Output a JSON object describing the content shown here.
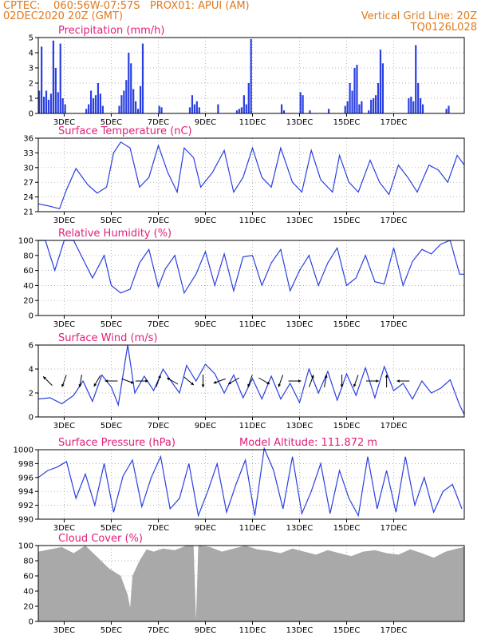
{
  "header": {
    "line1_left": "CPTEC:    060:56W-07:57S   PROX01: APUI (AM)",
    "line2_left": "02DEC2020 20Z (GMT)",
    "line2_right": "Vertical Grid Line: 20Z",
    "line3_right": "TQ0126L028",
    "text_color": "#e07a1f"
  },
  "colors": {
    "title": "#e0207a",
    "line": "#2a3fe0",
    "bar": "#2a3fe0",
    "cloud": "#a9a9a9",
    "grid": "#999999"
  },
  "x_axis": {
    "ticks": [
      "3DEC",
      "5DEC",
      "7DEC",
      "9DEC",
      "11DEC",
      "13DEC",
      "15DEC",
      "17DEC"
    ],
    "start": "02DEC2020 20Z",
    "end": "17DEC2020 00Z"
  },
  "chart_data": [
    {
      "type": "bar",
      "title": "Precipitation (mm/h)",
      "ylim": [
        0,
        5
      ],
      "yticks": [
        "0",
        "1",
        "2",
        "3",
        "4",
        "5"
      ],
      "x": [
        0.05,
        0.15,
        0.25,
        0.35,
        0.45,
        0.55,
        0.65,
        0.75,
        0.85,
        0.95,
        1.05,
        1.15,
        2.05,
        2.15,
        2.25,
        2.35,
        2.45,
        2.55,
        2.65,
        2.75,
        3.45,
        3.55,
        3.65,
        3.75,
        3.85,
        3.95,
        4.05,
        4.15,
        4.25,
        4.35,
        4.45,
        5.15,
        5.25,
        6.45,
        6.55,
        6.65,
        6.75,
        6.85,
        7.65,
        8.45,
        8.55,
        8.65,
        8.75,
        8.85,
        8.95,
        9.05,
        10.35,
        10.45,
        11.15,
        11.25,
        11.55,
        12.35,
        13.05,
        13.15,
        13.25,
        13.35,
        13.45,
        13.55,
        13.65,
        13.75,
        14.05,
        14.15,
        14.25,
        14.35,
        14.45,
        14.55,
        14.65,
        15.75,
        15.85,
        15.95,
        16.05,
        16.15,
        16.25,
        16.35,
        17.35,
        17.45
      ],
      "values": [
        1.5,
        4.4,
        1.1,
        1.5,
        0.9,
        1.3,
        4.8,
        3.0,
        1.4,
        4.6,
        1.0,
        0.6,
        0.3,
        0.6,
        1.5,
        1.0,
        1.2,
        2.0,
        1.3,
        0.5,
        0.5,
        1.2,
        1.5,
        2.2,
        4.0,
        3.3,
        1.6,
        0.8,
        0.3,
        1.8,
        4.6,
        0.5,
        0.4,
        0.4,
        1.2,
        0.6,
        0.8,
        0.4,
        0.6,
        0.2,
        0.3,
        0.4,
        1.2,
        0.6,
        2.0,
        4.9,
        0.6,
        0.2,
        1.4,
        1.2,
        0.2,
        0.3,
        0.5,
        0.8,
        2.0,
        1.5,
        3.0,
        3.2,
        0.6,
        0.8,
        0.2,
        0.9,
        1.0,
        1.2,
        2.0,
        4.2,
        3.3,
        1.0,
        1.1,
        0.8,
        4.5,
        2.0,
        1.0,
        0.6,
        0.3,
        0.5
      ]
    },
    {
      "type": "line",
      "title": "Surface Temperature (nC)",
      "ylim": [
        21,
        36
      ],
      "yticks": [
        "21",
        "24",
        "27",
        "30",
        "33",
        "36"
      ],
      "x": [
        0.0,
        0.4,
        0.9,
        1.2,
        1.6,
        2.1,
        2.5,
        2.9,
        3.2,
        3.5,
        3.9,
        4.3,
        4.7,
        5.1,
        5.5,
        5.9,
        6.2,
        6.6,
        6.9,
        7.4,
        7.9,
        8.3,
        8.7,
        9.1,
        9.5,
        9.9,
        10.3,
        10.8,
        11.2,
        11.6,
        12.0,
        12.5,
        12.8,
        13.2,
        13.6,
        14.1,
        14.5,
        14.9,
        15.3,
        15.7,
        16.1,
        16.6,
        17.0,
        17.4,
        17.8,
        18.1
      ],
      "values": [
        22.6,
        22.2,
        21.6,
        25.5,
        29.8,
        26.5,
        24.8,
        26.0,
        33.0,
        35.2,
        34.0,
        26.0,
        28.0,
        34.5,
        29.0,
        25.0,
        34.0,
        32.0,
        26.0,
        29.0,
        33.5,
        25.0,
        28.0,
        34.0,
        28.0,
        26.0,
        34.0,
        27.0,
        25.0,
        33.5,
        27.5,
        25.0,
        32.5,
        27.0,
        25.0,
        31.5,
        27.0,
        24.5,
        30.5,
        28.0,
        25.0,
        30.5,
        29.5,
        27.0,
        32.5,
        30.5
      ]
    },
    {
      "type": "line",
      "title": "Relative Humidity (%)",
      "ylim": [
        0,
        100
      ],
      "yticks": [
        "0",
        "20",
        "40",
        "60",
        "80",
        "100"
      ],
      "x": [
        0.0,
        0.3,
        0.7,
        1.1,
        1.5,
        1.9,
        2.3,
        2.8,
        3.1,
        3.5,
        3.9,
        4.3,
        4.7,
        5.1,
        5.4,
        5.8,
        6.2,
        6.7,
        7.1,
        7.5,
        7.9,
        8.3,
        8.7,
        9.1,
        9.5,
        9.9,
        10.3,
        10.7,
        11.1,
        11.5,
        11.9,
        12.3,
        12.7,
        13.1,
        13.5,
        13.9,
        14.3,
        14.7,
        15.1,
        15.5,
        15.9,
        16.3,
        16.7,
        17.1,
        17.5,
        17.9,
        18.1
      ],
      "values": [
        100,
        100,
        60,
        100,
        100,
        75,
        50,
        80,
        40,
        30,
        35,
        70,
        88,
        38,
        62,
        80,
        30,
        55,
        85,
        40,
        82,
        33,
        78,
        80,
        40,
        70,
        88,
        33,
        60,
        80,
        40,
        70,
        90,
        40,
        50,
        80,
        45,
        42,
        90,
        40,
        72,
        88,
        82,
        95,
        100,
        55,
        55
      ]
    },
    {
      "type": "line",
      "title": "Surface Wind (m/s)",
      "ylim": [
        0,
        6
      ],
      "yticks": [
        "0",
        "2",
        "4",
        "6"
      ],
      "x": [
        0.0,
        0.5,
        1.0,
        1.5,
        1.9,
        2.3,
        2.7,
        3.1,
        3.4,
        3.8,
        4.1,
        4.5,
        4.9,
        5.3,
        5.6,
        6.0,
        6.3,
        6.7,
        7.1,
        7.5,
        7.9,
        8.3,
        8.7,
        9.1,
        9.5,
        9.9,
        10.3,
        10.7,
        11.1,
        11.5,
        11.9,
        12.3,
        12.7,
        13.1,
        13.5,
        13.9,
        14.3,
        14.7,
        15.1,
        15.5,
        15.9,
        16.3,
        16.7,
        17.1,
        17.5,
        17.9,
        18.1
      ],
      "values": [
        1.5,
        1.6,
        1.1,
        1.8,
        3.0,
        1.3,
        3.5,
        2.5,
        1.0,
        6.0,
        2.0,
        3.4,
        2.2,
        4.0,
        3.1,
        2.0,
        4.3,
        3.0,
        4.4,
        3.6,
        2.0,
        3.5,
        1.6,
        3.2,
        1.5,
        3.4,
        1.5,
        2.8,
        1.2,
        4.0,
        2.0,
        3.8,
        1.4,
        3.6,
        1.8,
        4.1,
        1.6,
        4.2,
        2.2,
        2.8,
        1.5,
        3.0,
        2.0,
        2.4,
        3.1,
        1.0,
        0.2
      ],
      "vectors_count": 24,
      "vector_hours": [
        0.4,
        1.1,
        1.8,
        2.5,
        3.1,
        3.8,
        4.4,
        5.1,
        5.7,
        6.4,
        7.0,
        7.7,
        8.3,
        9.0,
        9.6,
        10.3,
        10.9,
        11.6,
        12.2,
        12.9,
        13.5,
        14.2,
        14.8,
        15.5
      ],
      "vector_directions_deg": [
        315,
        200,
        190,
        210,
        270,
        110,
        90,
        20,
        300,
        130,
        180,
        250,
        240,
        200,
        120,
        200,
        90,
        20,
        10,
        180,
        200,
        90,
        0,
        270
      ]
    },
    {
      "type": "line",
      "title": "Surface Pressure (hPa)",
      "annotation": "Model Altitude: 111.872  m",
      "ylim": [
        990,
        1000
      ],
      "yticks": [
        "990",
        "992",
        "994",
        "996",
        "998",
        "1000"
      ],
      "x": [
        0.0,
        0.4,
        0.8,
        1.2,
        1.6,
        2.0,
        2.4,
        2.8,
        3.2,
        3.6,
        4.0,
        4.4,
        4.8,
        5.2,
        5.6,
        6.0,
        6.4,
        6.8,
        7.2,
        7.6,
        8.0,
        8.4,
        8.8,
        9.2,
        9.6,
        10.0,
        10.4,
        10.8,
        11.2,
        11.6,
        12.0,
        12.4,
        12.8,
        13.2,
        13.6,
        14.0,
        14.4,
        14.8,
        15.2,
        15.6,
        16.0,
        16.4,
        16.8,
        17.2,
        17.6,
        18.0
      ],
      "values": [
        996.0,
        997.0,
        997.5,
        998.3,
        993.0,
        996.5,
        992.0,
        998.0,
        991.0,
        996.2,
        998.5,
        991.8,
        996.0,
        999.0,
        991.5,
        993.0,
        998.0,
        990.5,
        994.0,
        998.0,
        991.0,
        995.0,
        998.5,
        990.5,
        1000.2,
        997.0,
        991.5,
        999.0,
        990.8,
        994.0,
        998.0,
        990.8,
        997.0,
        993.0,
        990.5,
        999.0,
        991.5,
        997.0,
        991.0,
        999.0,
        992.0,
        996.0,
        991.0,
        994.0,
        995.0,
        991.5
      ]
    },
    {
      "type": "area",
      "title": "Cloud Cover (%)",
      "ylim": [
        0,
        100
      ],
      "yticks": [
        "0",
        "20",
        "40",
        "60",
        "80",
        "100"
      ],
      "x": [
        0.0,
        0.5,
        1.0,
        1.5,
        2.0,
        2.5,
        3.0,
        3.5,
        3.8,
        3.9,
        4.0,
        4.3,
        4.6,
        4.9,
        5.3,
        5.8,
        6.3,
        6.6,
        6.7,
        6.8,
        7.3,
        7.8,
        8.3,
        8.8,
        9.3,
        9.8,
        10.3,
        10.8,
        11.3,
        11.8,
        12.3,
        12.8,
        13.3,
        13.8,
        14.3,
        14.8,
        15.3,
        15.8,
        16.3,
        16.8,
        17.3,
        17.8,
        18.1
      ],
      "values": [
        92,
        95,
        98,
        90,
        100,
        85,
        70,
        60,
        35,
        18,
        60,
        80,
        95,
        92,
        96,
        94,
        100,
        100,
        2,
        100,
        98,
        92,
        96,
        100,
        95,
        93,
        90,
        96,
        92,
        88,
        94,
        90,
        86,
        92,
        94,
        90,
        88,
        95,
        90,
        84,
        92,
        96,
        98
      ]
    }
  ]
}
